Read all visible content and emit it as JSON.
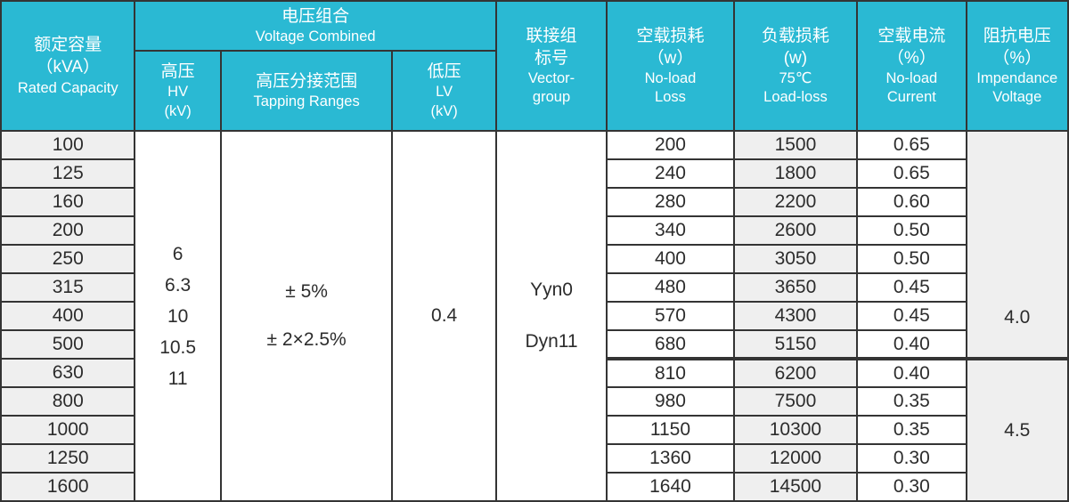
{
  "colors": {
    "header_bg": "#2ab9d3",
    "header_text": "#ffffff",
    "cell_shade": "#efefef",
    "border": "#343434",
    "body_text": "#2c2c2c"
  },
  "table": {
    "header": {
      "capacity": {
        "zh": "额定容量",
        "unit": "（kVA）",
        "en": "Rated  Capacity"
      },
      "voltage_group": {
        "zh": "电压组合",
        "en": "Voltage Combined"
      },
      "hv": {
        "zh": "高压",
        "en": "HV",
        "unit": "(kV)"
      },
      "tapping": {
        "zh": "高压分接范围",
        "en": "Tapping Ranges"
      },
      "lv": {
        "zh": "低压",
        "en": "LV",
        "unit": "(kV)"
      },
      "vector": {
        "zh1": "联接组",
        "zh2": "标号",
        "en1": "Vector-",
        "en2": "group"
      },
      "no_load_loss": {
        "zh": "空载损耗",
        "unit": "（w）",
        "en1": "No-load",
        "en2": "Loss"
      },
      "load_loss": {
        "zh": "负载损耗",
        "unit": "(w)",
        "en1": "75℃",
        "en2": "Load-loss"
      },
      "no_load_current": {
        "zh": "空载电流",
        "unit": "（%）",
        "en1": "No-load",
        "en2": "Current"
      },
      "impedance": {
        "zh": "阻抗电压",
        "unit": "（%）",
        "en1": "Impendance",
        "en2": "Voltage"
      }
    },
    "merged": {
      "hv_values": [
        "6",
        "6.3",
        "10",
        "10.5",
        "11"
      ],
      "tapping_values": [
        "± 5%",
        "± 2×2.5%"
      ],
      "lv_value": "0.4",
      "vector_values": [
        "Yyn0",
        "Dyn11"
      ],
      "impedance": [
        {
          "value": "4.0",
          "row_start": 1,
          "row_span": 8
        },
        {
          "value": "4.5",
          "row_start": 9,
          "row_span": 5
        }
      ]
    },
    "rows": [
      {
        "capacity": "100",
        "no_load_loss": "200",
        "load_loss": "1500",
        "no_load_current": "0.65"
      },
      {
        "capacity": "125",
        "no_load_loss": "240",
        "load_loss": "1800",
        "no_load_current": "0.65"
      },
      {
        "capacity": "160",
        "no_load_loss": "280",
        "load_loss": "2200",
        "no_load_current": "0.60"
      },
      {
        "capacity": "200",
        "no_load_loss": "340",
        "load_loss": "2600",
        "no_load_current": "0.50"
      },
      {
        "capacity": "250",
        "no_load_loss": "400",
        "load_loss": "3050",
        "no_load_current": "0.50"
      },
      {
        "capacity": "315",
        "no_load_loss": "480",
        "load_loss": "3650",
        "no_load_current": "0.45"
      },
      {
        "capacity": "400",
        "no_load_loss": "570",
        "load_loss": "4300",
        "no_load_current": "0.45"
      },
      {
        "capacity": "500",
        "no_load_loss": "680",
        "load_loss": "5150",
        "no_load_current": "0.40"
      },
      {
        "capacity": "630",
        "no_load_loss": "810",
        "load_loss": "6200",
        "no_load_current": "0.40"
      },
      {
        "capacity": "800",
        "no_load_loss": "980",
        "load_loss": "7500",
        "no_load_current": "0.35"
      },
      {
        "capacity": "1000",
        "no_load_loss": "1150",
        "load_loss": "10300",
        "no_load_current": "0.35"
      },
      {
        "capacity": "1250",
        "no_load_loss": "1360",
        "load_loss": "12000",
        "no_load_current": "0.30"
      },
      {
        "capacity": "1600",
        "no_load_loss": "1640",
        "load_loss": "14500",
        "no_load_current": "0.30"
      }
    ]
  },
  "chart_data": {
    "type": "table",
    "columns": [
      "额定容量 （kVA） Rated Capacity",
      "电压组合 Voltage Combined - 高压 HV (kV)",
      "电压组合 Voltage Combined - 高压分接范围 Tapping Ranges",
      "电压组合 Voltage Combined - 低压 LV (kV)",
      "联接组标号 Vector-group",
      "空载损耗 （w） No-load Loss",
      "负载损耗 (w) 75℃ Load-loss",
      "空载电流 （%） No-load Current",
      "阻抗电压 （%） Impendance Voltage"
    ],
    "hv_kv_options": [
      6,
      6.3,
      10,
      10.5,
      11
    ],
    "tapping_ranges": [
      "±5%",
      "±2×2.5%"
    ],
    "lv_kv": 0.4,
    "vector_groups": [
      "Yyn0",
      "Dyn11"
    ],
    "rows": [
      {
        "capacity_kva": 100,
        "no_load_loss_w": 200,
        "load_loss_w": 1500,
        "no_load_current_pct": 0.65,
        "impedance_pct": 4.0
      },
      {
        "capacity_kva": 125,
        "no_load_loss_w": 240,
        "load_loss_w": 1800,
        "no_load_current_pct": 0.65,
        "impedance_pct": 4.0
      },
      {
        "capacity_kva": 160,
        "no_load_loss_w": 280,
        "load_loss_w": 2200,
        "no_load_current_pct": 0.6,
        "impedance_pct": 4.0
      },
      {
        "capacity_kva": 200,
        "no_load_loss_w": 340,
        "load_loss_w": 2600,
        "no_load_current_pct": 0.5,
        "impedance_pct": 4.0
      },
      {
        "capacity_kva": 250,
        "no_load_loss_w": 400,
        "load_loss_w": 3050,
        "no_load_current_pct": 0.5,
        "impedance_pct": 4.0
      },
      {
        "capacity_kva": 315,
        "no_load_loss_w": 480,
        "load_loss_w": 3650,
        "no_load_current_pct": 0.45,
        "impedance_pct": 4.0
      },
      {
        "capacity_kva": 400,
        "no_load_loss_w": 570,
        "load_loss_w": 4300,
        "no_load_current_pct": 0.45,
        "impedance_pct": 4.0
      },
      {
        "capacity_kva": 500,
        "no_load_loss_w": 680,
        "load_loss_w": 5150,
        "no_load_current_pct": 0.4,
        "impedance_pct": 4.0
      },
      {
        "capacity_kva": 630,
        "no_load_loss_w": 810,
        "load_loss_w": 6200,
        "no_load_current_pct": 0.4,
        "impedance_pct": 4.5
      },
      {
        "capacity_kva": 800,
        "no_load_loss_w": 980,
        "load_loss_w": 7500,
        "no_load_current_pct": 0.35,
        "impedance_pct": 4.5
      },
      {
        "capacity_kva": 1000,
        "no_load_loss_w": 1150,
        "load_loss_w": 10300,
        "no_load_current_pct": 0.35,
        "impedance_pct": 4.5
      },
      {
        "capacity_kva": 1250,
        "no_load_loss_w": 1360,
        "load_loss_w": 12000,
        "no_load_current_pct": 0.3,
        "impedance_pct": 4.5
      },
      {
        "capacity_kva": 1600,
        "no_load_loss_w": 1640,
        "load_loss_w": 14500,
        "no_load_current_pct": 0.3,
        "impedance_pct": 4.5
      }
    ]
  }
}
